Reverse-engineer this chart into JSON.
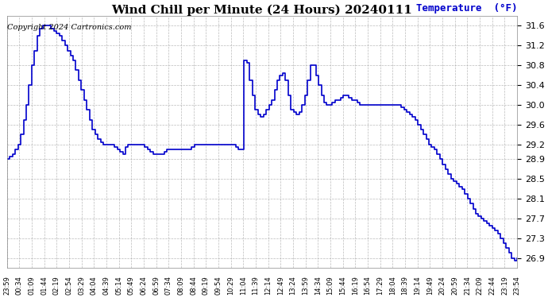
{
  "title": "Wind Chill per Minute (24 Hours) 20240111",
  "ylabel": "Temperature  (°F)",
  "copyright": "Copyright 2024 Cartronics.com",
  "line_color": "#0000cc",
  "ylabel_color": "#0000cc",
  "background_color": "#ffffff",
  "grid_color": "#aaaaaa",
  "ylim": [
    26.7,
    31.8
  ],
  "yticks": [
    26.9,
    27.3,
    27.7,
    28.1,
    28.5,
    28.9,
    29.2,
    29.6,
    30.0,
    30.4,
    30.8,
    31.2,
    31.6
  ],
  "x_labels": [
    "23:59",
    "00:34",
    "01:09",
    "01:44",
    "02:19",
    "02:54",
    "03:29",
    "04:04",
    "04:39",
    "05:14",
    "05:49",
    "06:24",
    "06:59",
    "07:34",
    "08:09",
    "08:44",
    "09:19",
    "09:54",
    "10:29",
    "11:04",
    "11:39",
    "12:14",
    "12:49",
    "13:24",
    "13:59",
    "14:34",
    "15:09",
    "15:44",
    "16:19",
    "16:54",
    "17:29",
    "18:04",
    "18:39",
    "19:14",
    "19:49",
    "20:24",
    "20:59",
    "21:34",
    "22:09",
    "22:44",
    "23:19",
    "23:54"
  ],
  "data_y": [
    28.9,
    28.95,
    29.0,
    29.1,
    29.2,
    29.4,
    29.7,
    30.0,
    30.4,
    30.8,
    31.1,
    31.4,
    31.55,
    31.6,
    31.6,
    31.6,
    31.55,
    31.5,
    31.45,
    31.4,
    31.3,
    31.2,
    31.1,
    31.0,
    30.9,
    30.7,
    30.5,
    30.3,
    30.1,
    29.9,
    29.7,
    29.5,
    29.4,
    29.3,
    29.25,
    29.2,
    29.2,
    29.2,
    29.2,
    29.15,
    29.1,
    29.05,
    29.0,
    29.15,
    29.2,
    29.2,
    29.2,
    29.2,
    29.2,
    29.2,
    29.15,
    29.1,
    29.05,
    29.0,
    29.0,
    29.0,
    29.0,
    29.05,
    29.1,
    29.1,
    29.1,
    29.1,
    29.1,
    29.1,
    29.1,
    29.1,
    29.1,
    29.15,
    29.2,
    29.2,
    29.2,
    29.2,
    29.2,
    29.2,
    29.2,
    29.2,
    29.2,
    29.2,
    29.2,
    29.2,
    29.2,
    29.2,
    29.2,
    29.15,
    29.1,
    29.1,
    30.9,
    30.85,
    30.5,
    30.2,
    29.9,
    29.8,
    29.75,
    29.8,
    29.9,
    30.0,
    30.1,
    30.3,
    30.5,
    30.6,
    30.65,
    30.5,
    30.2,
    29.9,
    29.85,
    29.8,
    29.85,
    30.0,
    30.2,
    30.5,
    30.8,
    30.8,
    30.6,
    30.4,
    30.2,
    30.05,
    30.0,
    30.0,
    30.05,
    30.1,
    30.1,
    30.15,
    30.2,
    30.2,
    30.15,
    30.1,
    30.1,
    30.05,
    30.0,
    30.0,
    30.0,
    30.0,
    30.0,
    30.0,
    30.0,
    30.0,
    30.0,
    30.0,
    30.0,
    30.0,
    30.0,
    30.0,
    30.0,
    29.95,
    29.9,
    29.85,
    29.8,
    29.75,
    29.7,
    29.6,
    29.5,
    29.4,
    29.3,
    29.2,
    29.15,
    29.1,
    29.0,
    28.9,
    28.8,
    28.7,
    28.6,
    28.5,
    28.45,
    28.4,
    28.35,
    28.3,
    28.2,
    28.1,
    28.0,
    27.9,
    27.8,
    27.75,
    27.7,
    27.65,
    27.6,
    27.55,
    27.5,
    27.45,
    27.4,
    27.3,
    27.2,
    27.1,
    27.0,
    26.9,
    26.85,
    26.9
  ],
  "title_fontsize": 11,
  "copyright_fontsize": 7,
  "ylabel_fontsize": 9,
  "ytick_fontsize": 8,
  "xtick_fontsize": 6
}
